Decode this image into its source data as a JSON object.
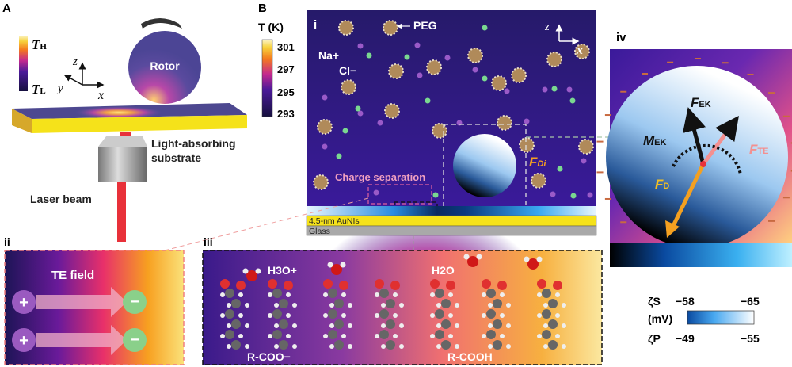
{
  "panels": {
    "A": {
      "label": "A",
      "colorbar": {
        "high": "T",
        "high_sub": "H",
        "low": "T",
        "low_sub": "L"
      },
      "axes": {
        "z": "z",
        "y": "y",
        "x": "x"
      },
      "rotor_label": "Rotor",
      "substrate_label_line1": "Light-absorbing",
      "substrate_label_line2": "substrate",
      "laser_label": "Laser beam"
    },
    "B": {
      "label": "B",
      "colorbar": {
        "title": "T (K)",
        "ticks": [
          "301",
          "297",
          "295",
          "293"
        ]
      },
      "i": {
        "label": "i",
        "peg": "PEG",
        "na": "Na+",
        "cl": "Cl−",
        "axes": {
          "z": "z",
          "x": "x"
        },
        "force": "F",
        "force_sub": "Di",
        "charge_separation": "Charge separation",
        "layer_au": "4.5-nm AuNIs",
        "layer_glass": "Glass"
      },
      "ii": {
        "label": "ii",
        "field": "TE field",
        "plus": "+",
        "minus": "−"
      },
      "iii": {
        "label": "iii",
        "h3o": "H3O+",
        "h2o": "H2O",
        "left_group": "R-COO−",
        "right_group": "R-COOH"
      },
      "iv": {
        "label": "iv",
        "f_ek": "F",
        "f_ek_sub": "EK",
        "m_ek": "M",
        "m_ek_sub": "EK",
        "f_te": "F",
        "f_te_sub": "TE",
        "f_d": "F",
        "f_d_sub": "D"
      },
      "zeta_legend": {
        "zs_label": "ζS",
        "zs_min": "−58",
        "zs_max": "−65",
        "unit": "(mV)",
        "zp_label": "ζP",
        "zp_min": "−49",
        "zp_max": "−55"
      }
    }
  },
  "colors": {
    "hot": "#ffe36a",
    "cold": "#1d1456",
    "substrate": "#f5e21a",
    "laser": "#e8313a",
    "blue": "#0a5fc4"
  }
}
